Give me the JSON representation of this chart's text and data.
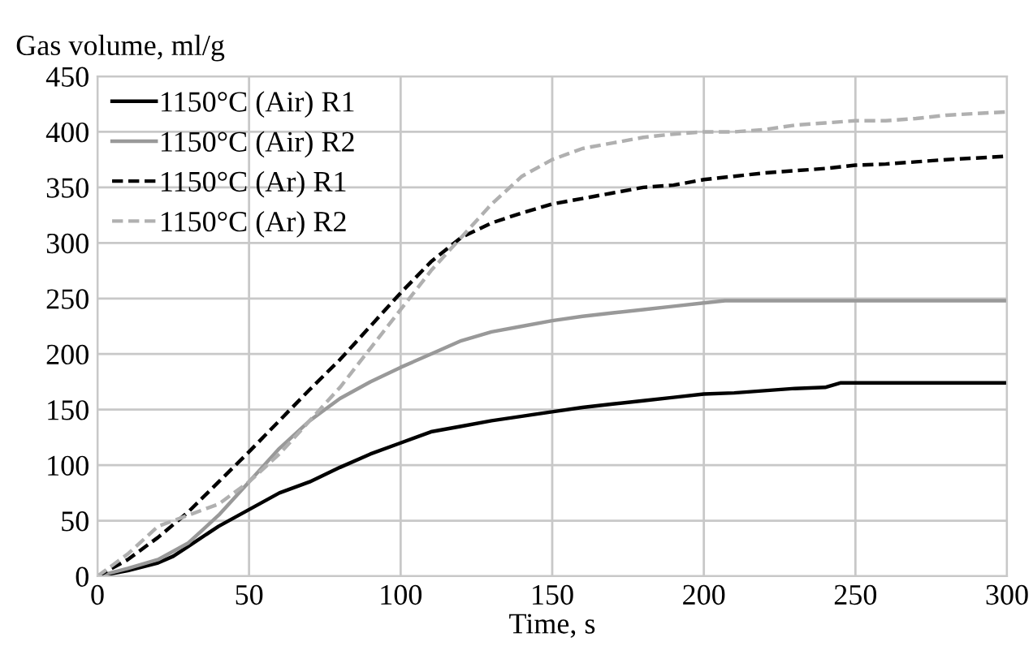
{
  "chart_data": {
    "type": "line",
    "xlabel": "Time, s",
    "ylabel": "Gas volume, ml/g",
    "xlim": [
      0,
      300
    ],
    "xticks": [
      0,
      50,
      100,
      150,
      200,
      250,
      300
    ],
    "ylim": [
      0,
      450
    ],
    "yticks": [
      0,
      50,
      100,
      150,
      200,
      250,
      300,
      350,
      400,
      450
    ],
    "grid": true,
    "legend": "top left",
    "series": [
      {
        "name": "1150°C (Air) R1",
        "color": "#000000",
        "line_style": "solid",
        "x": [
          0,
          10,
          20,
          25,
          30,
          40,
          50,
          60,
          70,
          80,
          90,
          100,
          110,
          120,
          130,
          140,
          150,
          160,
          170,
          180,
          190,
          200,
          210,
          220,
          230,
          240,
          245,
          300
        ],
        "values": [
          0,
          5,
          12,
          18,
          27,
          45,
          60,
          75,
          85,
          98,
          110,
          120,
          130,
          135,
          140,
          144,
          148,
          152,
          155,
          158,
          161,
          164,
          165,
          167,
          169,
          170,
          174,
          174
        ]
      },
      {
        "name": "1150°C (Air) R2",
        "color": "#999999",
        "line_style": "solid",
        "x": [
          0,
          10,
          20,
          30,
          40,
          50,
          60,
          70,
          80,
          90,
          100,
          110,
          120,
          130,
          140,
          150,
          160,
          170,
          180,
          190,
          200,
          207,
          300
        ],
        "values": [
          0,
          7,
          15,
          30,
          55,
          85,
          115,
          140,
          160,
          175,
          188,
          200,
          212,
          220,
          225,
          230,
          234,
          237,
          240,
          243,
          246,
          248,
          248
        ]
      },
      {
        "name": "1150°C (Ar) R1",
        "color": "#000000",
        "line_style": "dashed",
        "x": [
          0,
          10,
          20,
          30,
          40,
          50,
          60,
          70,
          80,
          90,
          100,
          110,
          120,
          130,
          140,
          150,
          160,
          170,
          180,
          190,
          200,
          210,
          220,
          230,
          240,
          250,
          260,
          270,
          280,
          300
        ],
        "values": [
          0,
          15,
          35,
          58,
          85,
          112,
          140,
          168,
          195,
          225,
          255,
          283,
          305,
          318,
          327,
          335,
          340,
          345,
          350,
          352,
          357,
          360,
          363,
          365,
          367,
          370,
          371,
          373,
          375,
          378
        ]
      },
      {
        "name": "1150°C (Ar) R2",
        "color": "#b0b0b0",
        "line_style": "dashed",
        "x": [
          0,
          10,
          20,
          30,
          40,
          50,
          60,
          70,
          80,
          90,
          100,
          110,
          120,
          130,
          140,
          150,
          160,
          170,
          180,
          190,
          200,
          210,
          220,
          230,
          240,
          250,
          260,
          270,
          280,
          300
        ],
        "values": [
          0,
          20,
          45,
          55,
          65,
          85,
          110,
          140,
          170,
          205,
          240,
          275,
          305,
          335,
          360,
          375,
          385,
          390,
          395,
          398,
          400,
          400,
          402,
          406,
          408,
          410,
          410,
          412,
          415,
          418
        ]
      }
    ]
  }
}
